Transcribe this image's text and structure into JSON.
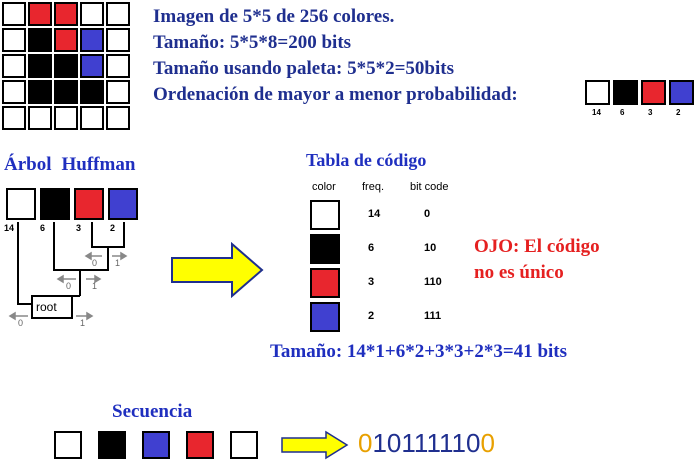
{
  "header": {
    "line1": "Imagen de 5*5 de 256 colores.",
    "line2": "Tamaño: 5*5*8=200 bits",
    "line3": "Tamaño usando paleta: 5*5*2=50bits",
    "line4": "Ordenación de mayor a menor probabilidad:"
  },
  "colors": {
    "white": "#ffffff",
    "black": "#000000",
    "red": "#e8262e",
    "blue": "#4040d0",
    "accent": "#1f2f8f",
    "yellow": "#ffff00",
    "seq_orange": "#e8a000"
  },
  "image_grid": [
    [
      "white",
      "red",
      "red",
      "white",
      "white"
    ],
    [
      "white",
      "black",
      "red",
      "blue",
      "white"
    ],
    [
      "white",
      "black",
      "black",
      "blue",
      "white"
    ],
    [
      "white",
      "black",
      "black",
      "black",
      "white"
    ],
    [
      "white",
      "white",
      "white",
      "white",
      "white"
    ]
  ],
  "palette_order": {
    "colors": [
      "white",
      "black",
      "red",
      "blue"
    ],
    "counts": [
      "14",
      "6",
      "3",
      "2"
    ]
  },
  "tree": {
    "title_part1": "Árbol",
    "title_part2": "Huffman",
    "counts": [
      "14",
      "6",
      "3",
      "2"
    ],
    "branch_zero": "0",
    "branch_one": "1",
    "root_label": "root"
  },
  "table": {
    "title": "Tabla de código",
    "headers": [
      "color",
      "freq.",
      "bit code"
    ],
    "rows": [
      {
        "color": "white",
        "freq": "14",
        "code": "0"
      },
      {
        "color": "black",
        "freq": "6",
        "code": "10"
      },
      {
        "color": "red",
        "freq": "3",
        "code": "110"
      },
      {
        "color": "blue",
        "freq": "2",
        "code": "111"
      }
    ]
  },
  "note": {
    "line1": "OJO: El código",
    "line2": "no es único"
  },
  "size_result": "Tamaño: 14*1+6*2+3*3+2*3=41 bits",
  "sequence": {
    "title": "Secuencia",
    "colors": [
      "white",
      "black",
      "blue",
      "red",
      "white"
    ],
    "bits": [
      "0",
      "10",
      "111",
      "110",
      "0"
    ]
  }
}
